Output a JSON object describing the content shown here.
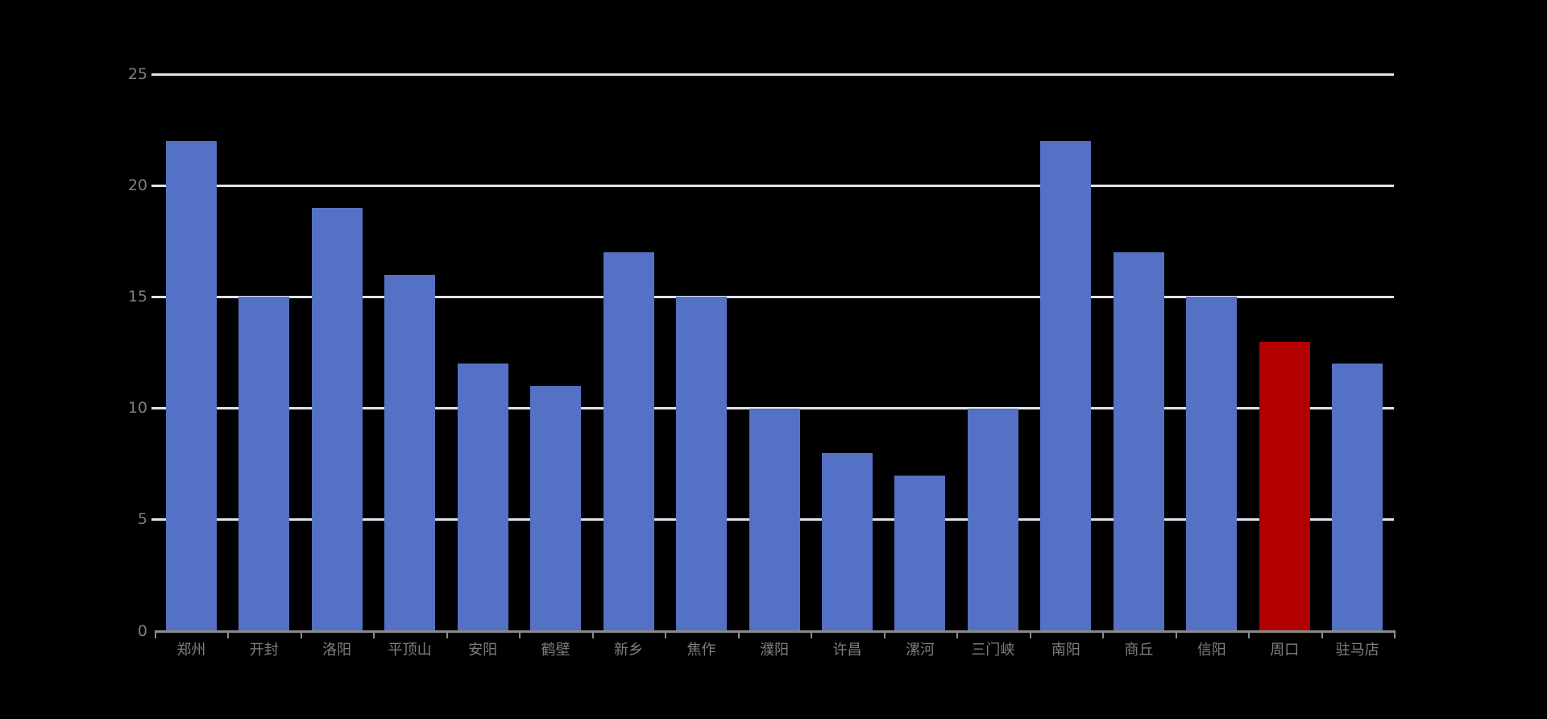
{
  "chart_data": {
    "type": "bar",
    "title": "",
    "xlabel": "",
    "ylabel": "",
    "categories": [
      "郑州",
      "开封",
      "洛阳",
      "平顶山",
      "安阳",
      "鹤壁",
      "新乡",
      "焦作",
      "濮阳",
      "许昌",
      "漯河",
      "三门峡",
      "南阳",
      "商丘",
      "信阳",
      "周口",
      "驻马店"
    ],
    "values": [
      22,
      15,
      19,
      16,
      12,
      11,
      17,
      15,
      10,
      8,
      7,
      10,
      22,
      17,
      15,
      13,
      12
    ],
    "highlight_index": 15,
    "highlight_category": "周口",
    "ylim": [
      0,
      25
    ],
    "yticks": [
      "0",
      "5",
      "10",
      "15",
      "20",
      "25"
    ],
    "grid": true,
    "legend": false,
    "colors": {
      "background": "#000000",
      "bar": "#5571C5",
      "highlight_bar": "#B20000",
      "gridline": "#DFE2ED",
      "axis": "#8A8A8A",
      "tick_label": "#7F7F7F"
    }
  }
}
